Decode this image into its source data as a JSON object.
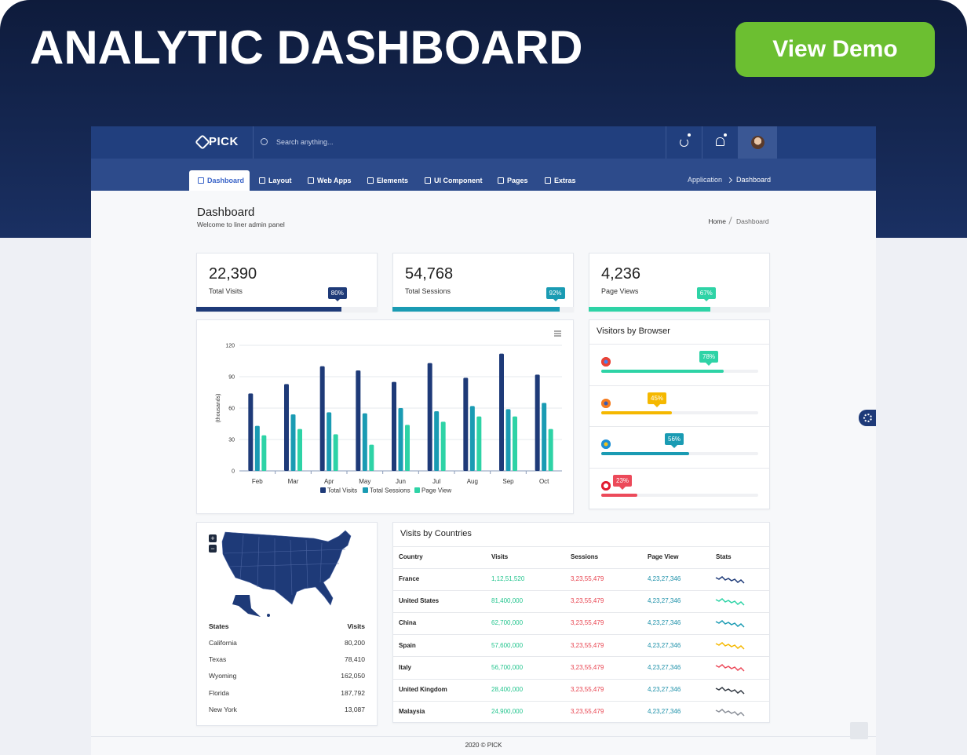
{
  "banner": {
    "title": "ANALYTIC DASHBOARD",
    "button": "View Demo"
  },
  "header": {
    "logo": "PICK",
    "search": "Search anything..."
  },
  "nav": {
    "items": [
      "Dashboard",
      "Layout",
      "Web Apps",
      "Elements",
      "UI Component",
      "Pages",
      "Extras"
    ],
    "breadcrumb": [
      "Application",
      "Dashboard"
    ]
  },
  "page": {
    "title": "Dashboard",
    "subtitle": "Welcome to liner admin panel",
    "breadcrumb": [
      "Home",
      "Dashboard"
    ]
  },
  "stats": [
    {
      "value": "22,390",
      "label": "Total Visits",
      "progress": 80,
      "progress_label": "80%",
      "color": "#1e3a78"
    },
    {
      "value": "54,768",
      "label": "Total Sessions",
      "progress": 92,
      "progress_label": "92%",
      "color": "#1a9bb3"
    },
    {
      "value": "4,236",
      "label": "Page Views",
      "progress": 67,
      "progress_label": "67%",
      "color": "#2ed3a6"
    }
  ],
  "chart_data": {
    "type": "bar",
    "y_label": "(thousands)",
    "categories": [
      "Feb",
      "Mar",
      "Apr",
      "May",
      "Jun",
      "Jul",
      "Aug",
      "Sep",
      "Oct"
    ],
    "series": [
      {
        "name": "Total Visits",
        "color": "#1e3a78",
        "values": [
          74,
          83,
          100,
          96,
          85,
          103,
          89,
          112,
          92
        ]
      },
      {
        "name": "Total Sessions",
        "color": "#1a9bb3",
        "values": [
          43,
          54,
          56,
          55,
          60,
          57,
          62,
          59,
          65
        ]
      },
      {
        "name": "Page View",
        "color": "#2ed3a6",
        "values": [
          34,
          40,
          35,
          25,
          44,
          47,
          52,
          52,
          40
        ]
      }
    ],
    "ylim": [
      0,
      120
    ],
    "yticks": [
      0,
      30,
      60,
      90,
      120
    ],
    "grid": true
  },
  "browsers": {
    "title": "Visitors by Browser",
    "items": [
      {
        "value": 78,
        "label": "78%",
        "color": "#2ed3a6"
      },
      {
        "value": 45,
        "label": "45%",
        "color": "#f5b800"
      },
      {
        "value": 56,
        "label": "56%",
        "color": "#1a9bb3"
      },
      {
        "value": 23,
        "label": "23%",
        "color": "#ec4a5a"
      }
    ]
  },
  "map": {
    "zoom": [
      "+",
      "−"
    ],
    "headers": [
      "States",
      "Visits"
    ],
    "rows": [
      [
        "California",
        "80,200"
      ],
      [
        "Texas",
        "78,410"
      ],
      [
        "Wyoming",
        "162,050"
      ],
      [
        "Florida",
        "187,792"
      ],
      [
        "New York",
        "13,087"
      ]
    ]
  },
  "countries": {
    "title": "Visits by Countries",
    "headers": [
      "Country",
      "Visits",
      "Sessions",
      "Page View",
      "Stats"
    ],
    "rows": [
      [
        "France",
        "1,12,51,520",
        "3,23,55,479",
        "4,23,27,346"
      ],
      [
        "United States",
        "81,400,000",
        "3,23,55,479",
        "4,23,27,346"
      ],
      [
        "China",
        "62,700,000",
        "3,23,55,479",
        "4,23,27,346"
      ],
      [
        "Spain",
        "57,600,000",
        "3,23,55,479",
        "4,23,27,346"
      ],
      [
        "Italy",
        "56,700,000",
        "3,23,55,479",
        "4,23,27,346"
      ],
      [
        "United Kingdom",
        "28,400,000",
        "3,23,55,479",
        "4,23,27,346"
      ],
      [
        "Malaysia",
        "24,900,000",
        "3,23,55,479",
        "4,23,27,346"
      ]
    ],
    "spark_colors": [
      "#1e3a78",
      "#2ed3a6",
      "#1a9bb3",
      "#f5b800",
      "#ec4a5a",
      "#333a44",
      "#8a8f98"
    ]
  },
  "footer": "2020 © PICK"
}
